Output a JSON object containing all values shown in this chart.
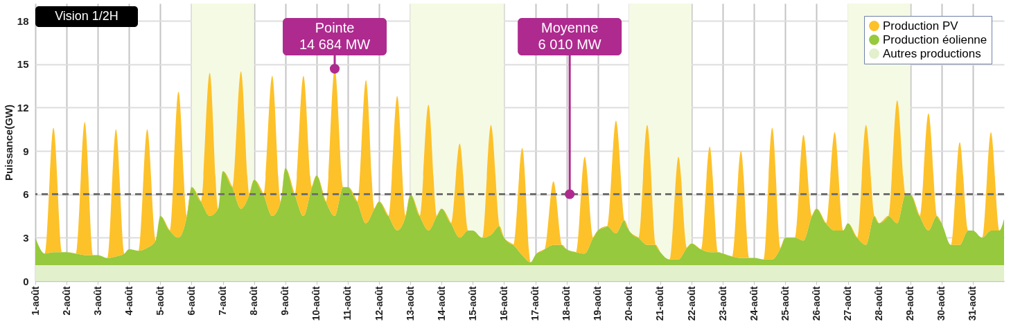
{
  "chart_data": {
    "type": "area",
    "stacked": true,
    "ylabel": "Puissance(GW)",
    "ylim": [
      0,
      19.2
    ],
    "yticks": [
      0,
      3,
      6,
      9,
      12,
      15,
      18
    ],
    "xlim": [
      1,
      32
    ],
    "xticks": [
      {
        "value": 1,
        "label": "1-août"
      },
      {
        "value": 2,
        "label": "2-août"
      },
      {
        "value": 3,
        "label": "3-août"
      },
      {
        "value": 4,
        "label": "4-août"
      },
      {
        "value": 5,
        "label": "5-août"
      },
      {
        "value": 6,
        "label": "6-août"
      },
      {
        "value": 7,
        "label": "7-août"
      },
      {
        "value": 8,
        "label": "8-août"
      },
      {
        "value": 9,
        "label": "9-août"
      },
      {
        "value": 10,
        "label": "10-août"
      },
      {
        "value": 11,
        "label": "11-août"
      },
      {
        "value": 12,
        "label": "12-août"
      },
      {
        "value": 13,
        "label": "13-août"
      },
      {
        "value": 14,
        "label": "14-août"
      },
      {
        "value": 15,
        "label": "15-août"
      },
      {
        "value": 16,
        "label": "16-août"
      },
      {
        "value": 17,
        "label": "17-août"
      },
      {
        "value": 18,
        "label": "18-août"
      },
      {
        "value": 19,
        "label": "19-août"
      },
      {
        "value": 20,
        "label": "20-août"
      },
      {
        "value": 21,
        "label": "21-août"
      },
      {
        "value": 22,
        "label": "22-août"
      },
      {
        "value": 23,
        "label": "23-août"
      },
      {
        "value": 24,
        "label": "24-août"
      },
      {
        "value": 25,
        "label": "25-août"
      },
      {
        "value": 26,
        "label": "26-août"
      },
      {
        "value": 27,
        "label": "27-août"
      },
      {
        "value": 28,
        "label": "28-août"
      },
      {
        "value": 29,
        "label": "29-août"
      },
      {
        "value": 30,
        "label": "30-août"
      },
      {
        "value": 31,
        "label": "31-août"
      }
    ],
    "x": [
      1,
      1.3,
      1.58,
      1.85,
      2,
      2.3,
      2.58,
      2.85,
      3,
      3.3,
      3.58,
      3.85,
      4,
      4.3,
      4.58,
      4.85,
      5,
      5.3,
      5.58,
      5.85,
      6,
      6.3,
      6.58,
      6.85,
      7,
      7.3,
      7.58,
      7.85,
      8,
      8.3,
      8.58,
      8.85,
      9,
      9.3,
      9.58,
      9.85,
      10,
      10.3,
      10.58,
      10.85,
      11,
      11.3,
      11.58,
      11.85,
      12,
      12.3,
      12.58,
      12.85,
      13,
      13.3,
      13.58,
      13.85,
      14,
      14.3,
      14.58,
      14.85,
      15,
      15.3,
      15.58,
      15.85,
      16,
      16.3,
      16.58,
      16.85,
      17,
      17.3,
      17.58,
      17.85,
      18,
      18.3,
      18.58,
      18.85,
      19,
      19.3,
      19.58,
      19.85,
      20,
      20.3,
      20.58,
      20.85,
      21,
      21.3,
      21.58,
      21.85,
      22,
      22.3,
      22.58,
      22.85,
      23,
      23.3,
      23.58,
      23.85,
      24,
      24.3,
      24.58,
      24.85,
      25,
      25.3,
      25.58,
      25.85,
      26,
      26.3,
      26.58,
      26.85,
      27,
      27.3,
      27.58,
      27.85,
      28,
      28.3,
      28.58,
      28.85,
      29,
      29.3,
      29.58,
      29.85,
      30,
      30.3,
      30.58,
      30.85,
      31,
      31.3,
      31.58,
      31.85,
      32
    ],
    "series": [
      {
        "name": "Autres productions",
        "color": "#e2f0cc",
        "values": [
          1.1,
          1.1,
          1.1,
          1.1,
          1.1,
          1.1,
          1.1,
          1.1,
          1.1,
          1.1,
          1.1,
          1.1,
          1.1,
          1.1,
          1.1,
          1.1,
          1.1,
          1.1,
          1.1,
          1.1,
          1.1,
          1.1,
          1.1,
          1.1,
          1.1,
          1.1,
          1.1,
          1.1,
          1.1,
          1.1,
          1.1,
          1.1,
          1.1,
          1.1,
          1.1,
          1.1,
          1.1,
          1.1,
          1.1,
          1.1,
          1.1,
          1.1,
          1.1,
          1.1,
          1.1,
          1.1,
          1.1,
          1.1,
          1.1,
          1.1,
          1.1,
          1.1,
          1.1,
          1.1,
          1.1,
          1.1,
          1.1,
          1.1,
          1.1,
          1.1,
          1.1,
          1.1,
          1.1,
          1.1,
          1.1,
          1.1,
          1.1,
          1.1,
          1.1,
          1.1,
          1.1,
          1.1,
          1.1,
          1.1,
          1.1,
          1.1,
          1.1,
          1.1,
          1.1,
          1.1,
          1.1,
          1.1,
          1.1,
          1.1,
          1.1,
          1.1,
          1.1,
          1.1,
          1.1,
          1.1,
          1.1,
          1.1,
          1.1,
          1.1,
          1.1,
          1.1,
          1.1,
          1.1,
          1.1,
          1.1,
          1.1,
          1.1,
          1.1,
          1.1,
          1.1,
          1.1,
          1.1,
          1.1,
          1.1,
          1.1,
          1.1,
          1.1,
          1.1,
          1.1,
          1.1,
          1.1,
          1.1,
          1.1,
          1.1,
          1.1,
          1.1,
          1.1,
          1.1,
          1.1,
          1.1
        ]
      },
      {
        "name": "Production éolienne",
        "color": "#96c93d",
        "values": [
          1.9,
          0.8,
          0.9,
          0.9,
          0.9,
          0.8,
          0.7,
          0.7,
          0.7,
          0.5,
          0.6,
          0.8,
          1.1,
          1.0,
          1.2,
          1.7,
          3.4,
          2.4,
          1.9,
          3.4,
          5.4,
          4.4,
          3.4,
          3.9,
          6.5,
          5.4,
          3.9,
          4.9,
          5.9,
          4.9,
          3.4,
          4.4,
          6.7,
          4.9,
          3.4,
          5.4,
          6.2,
          4.4,
          3.4,
          5.4,
          5.4,
          4.4,
          2.9,
          3.9,
          4.4,
          3.4,
          2.4,
          3.4,
          4.9,
          3.4,
          2.4,
          3.4,
          3.9,
          2.9,
          1.9,
          2.4,
          2.4,
          1.9,
          2.1,
          2.7,
          1.9,
          1.4,
          0.7,
          0.2,
          0.7,
          1.1,
          1.4,
          1.4,
          1.1,
          0.9,
          0.8,
          1.9,
          2.4,
          2.7,
          2.2,
          3.1,
          2.4,
          1.9,
          1.4,
          1.4,
          0.9,
          0.4,
          0.4,
          1.2,
          1.5,
          1.1,
          0.9,
          0.9,
          0.8,
          0.6,
          0.5,
          0.5,
          0.5,
          0.4,
          0.4,
          1.2,
          1.9,
          1.9,
          1.7,
          3.4,
          3.9,
          2.9,
          2.4,
          2.4,
          2.9,
          1.9,
          1.4,
          3.4,
          2.9,
          3.4,
          2.9,
          4.9,
          4.9,
          3.4,
          2.4,
          3.4,
          2.9,
          1.4,
          1.4,
          2.4,
          2.4,
          1.9,
          2.4,
          2.4,
          3.2
        ]
      },
      {
        "name": "Production PV",
        "color": "#fdc12a",
        "values": [
          0,
          0,
          8.6,
          0,
          0,
          0,
          9.2,
          0,
          0,
          0,
          8.8,
          0,
          0,
          0,
          8.2,
          0,
          0,
          0,
          10.1,
          0,
          0,
          0,
          9.9,
          0,
          0,
          0,
          9.5,
          0,
          0,
          0,
          9.7,
          0,
          0,
          0,
          9.7,
          0,
          0,
          0,
          10.2,
          0,
          0,
          0,
          9.9,
          0,
          0,
          0,
          9.3,
          0,
          0,
          0,
          8.7,
          0,
          0,
          0,
          6.5,
          0,
          0,
          0,
          7.6,
          0,
          0,
          0,
          7.4,
          0,
          0,
          0,
          4.4,
          0,
          0,
          0,
          6.7,
          0,
          0,
          0,
          7.8,
          0,
          0,
          0,
          8.3,
          0,
          0,
          0,
          7.1,
          0,
          0,
          0,
          7.3,
          0,
          0,
          0,
          7.4,
          0,
          0,
          0,
          9.1,
          0,
          0,
          0,
          7.3,
          0,
          0,
          0,
          6.8,
          0,
          0,
          0,
          8.3,
          0,
          0,
          0,
          8.5,
          0,
          0,
          0,
          8.1,
          0,
          0,
          0,
          7.1,
          0,
          0,
          0,
          6.8,
          0,
          0
        ]
      }
    ],
    "ref_lines": [
      {
        "axis": "y",
        "value": 6.01,
        "color": "#707070",
        "line_style": "dashed"
      }
    ],
    "bands": [
      {
        "axis": "x",
        "from": 6,
        "to": 8,
        "color": "#f5fae4"
      },
      {
        "axis": "x",
        "from": 13,
        "to": 16,
        "color": "#f5fae4"
      },
      {
        "axis": "x",
        "from": 20,
        "to": 22,
        "color": "#f5fae4"
      },
      {
        "axis": "x",
        "from": 27,
        "to": 29,
        "color": "#f5fae4"
      }
    ],
    "annotations": [
      "Vision 1/2H",
      {
        "text": "Pointe\n14 684 MW",
        "x": 10.58,
        "y": 14.684
      },
      {
        "text": "Moyenne\n6 010 MW",
        "x": 18.1,
        "y": 6.01
      }
    ],
    "grid": true,
    "legend": "top right"
  }
}
